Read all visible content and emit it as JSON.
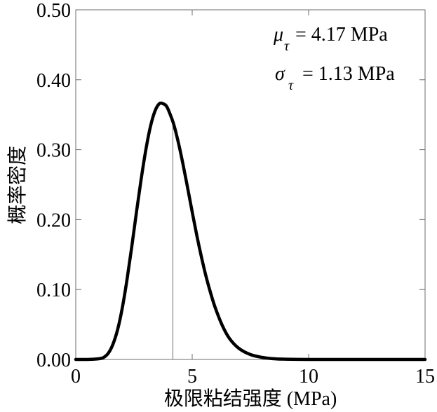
{
  "chart_data": {
    "type": "line",
    "title": "",
    "xlabel": "极限粘结强度 (MPa)",
    "ylabel": "概率密度",
    "xlim": [
      0,
      15
    ],
    "ylim": [
      0,
      0.5
    ],
    "xticks": [
      0,
      5,
      10,
      15
    ],
    "xtick_labels": [
      "0",
      "5",
      "10",
      "15"
    ],
    "yticks": [
      0,
      0.1,
      0.2,
      0.3,
      0.4,
      0.5
    ],
    "ytick_labels": [
      "0.00",
      "0.10",
      "0.20",
      "0.30",
      "0.40",
      "0.50"
    ],
    "grid": false,
    "series": [
      {
        "color": "#000000",
        "x": [
          0,
          0.5,
          1.0,
          1.2,
          1.4,
          1.6,
          1.8,
          2.0,
          2.2,
          2.4,
          2.6,
          2.8,
          3.0,
          3.2,
          3.4,
          3.6,
          3.8,
          3.9,
          4.0,
          4.2,
          4.4,
          4.6,
          4.8,
          5.0,
          5.2,
          5.4,
          5.6,
          5.8,
          6.0,
          6.3,
          6.6,
          7.0,
          7.5,
          8.0,
          8.5,
          9.0,
          10.0,
          12.0,
          15.0
        ],
        "y": [
          0,
          0,
          0.001,
          0.003,
          0.009,
          0.022,
          0.043,
          0.074,
          0.114,
          0.16,
          0.209,
          0.256,
          0.298,
          0.332,
          0.355,
          0.366,
          0.365,
          0.362,
          0.355,
          0.337,
          0.311,
          0.28,
          0.246,
          0.211,
          0.177,
          0.146,
          0.118,
          0.094,
          0.073,
          0.048,
          0.03,
          0.016,
          0.007,
          0.003,
          0.001,
          0.0004,
          0,
          0,
          0
        ]
      }
    ],
    "reference_line": {
      "x": 4.17
    },
    "annotations": [
      {
        "symbol": "μ",
        "subscript": "τ",
        "text": "= 4.17 MPa"
      },
      {
        "symbol": "σ",
        "subscript": "τ",
        "text": "= 1.13 MPa"
      }
    ]
  }
}
